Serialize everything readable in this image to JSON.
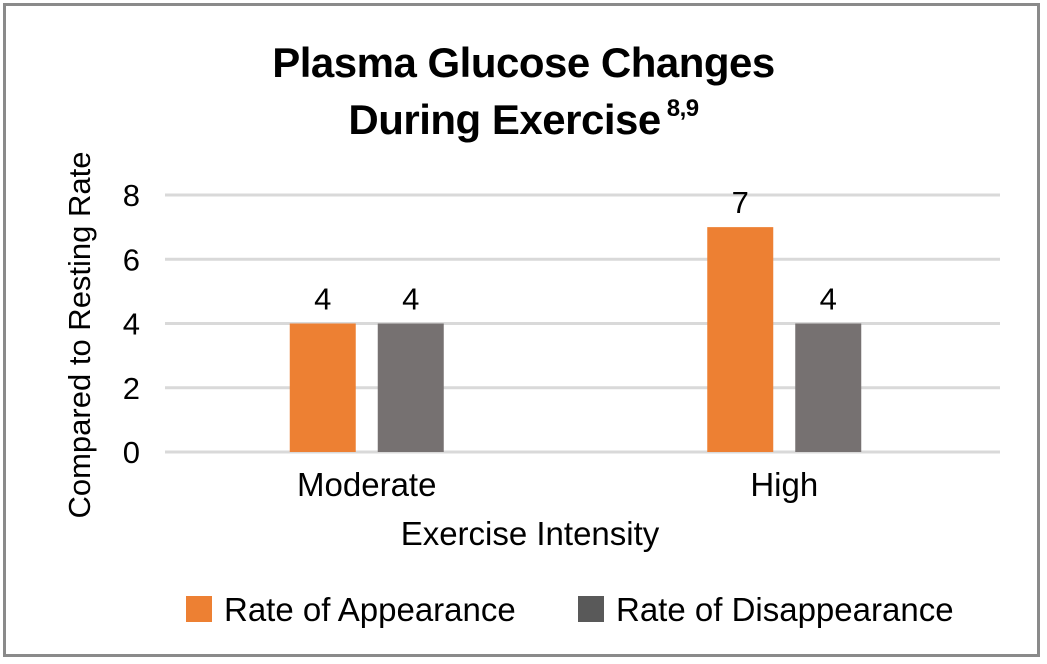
{
  "chart_data": {
    "type": "bar",
    "title": "Plasma Glucose Changes",
    "title_line2": "During Exercise",
    "title_superscript": "8,9",
    "xlabel": "Exercise Intensity",
    "ylabel": "Compared to Resting Rate",
    "categories": [
      "Moderate",
      "High"
    ],
    "series": [
      {
        "name": "Rate of Appearance",
        "values": [
          4,
          7
        ],
        "labels": [
          "4",
          "7"
        ],
        "color": "#ed8033"
      },
      {
        "name": "Rate of Disappearance",
        "values": [
          4,
          4
        ],
        "labels": [
          "4",
          "4"
        ],
        "color": "#767171"
      }
    ],
    "ylim": [
      0,
      8
    ],
    "yticks": [
      "0",
      "2",
      "4",
      "6",
      "8"
    ],
    "grid": true,
    "legend_position": "bottom",
    "colors": {
      "frame": "#8a8a8a",
      "grid": "#d9d9d9",
      "text": "#000000"
    }
  }
}
